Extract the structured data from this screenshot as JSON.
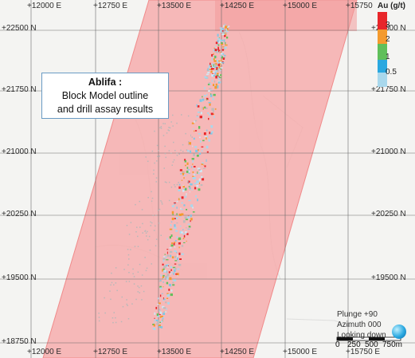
{
  "title_box": {
    "line1": "Ablifa :",
    "line2": "Block Model outline",
    "line3": "and drill assay results"
  },
  "legend": {
    "title": "Au (g/t)",
    "items": [
      {
        "label": "3",
        "color": "#e8262a"
      },
      {
        "label": "2",
        "color": "#f49a2e"
      },
      {
        "label": "1",
        "color": "#5fbf5a"
      },
      {
        "label": "0.5",
        "color": "#a9d8ec"
      }
    ]
  },
  "grid": {
    "top_labels": [
      "+12000 E",
      "+12750 E",
      "+13500 E",
      "+14250 E",
      "+15000 E",
      "+15750"
    ],
    "bottom_labels": [
      "+12000 E",
      "+12750 E",
      "+13500 E",
      "+14250 E",
      "+15000 E",
      "+15750 E"
    ],
    "left_labels": [
      "+22500 N",
      "+21750 N",
      "+21000 N",
      "+20250 N",
      "+19500 N",
      "+18750 N"
    ],
    "right_labels": [
      "+22500 N",
      "+21750 N",
      "+21000 N",
      "+20250 N",
      "+19500 N"
    ]
  },
  "view": {
    "plunge": "Plunge +90",
    "azimuth": "Azimuth 000",
    "looking": "Looking down"
  },
  "scale": {
    "zero": "0",
    "mid": "250",
    "end": "500",
    "units": "750m",
    "globe_icon": "globe-icon"
  },
  "colors": {
    "block_model": "#f6a9a9",
    "grid_line": "#555555"
  }
}
